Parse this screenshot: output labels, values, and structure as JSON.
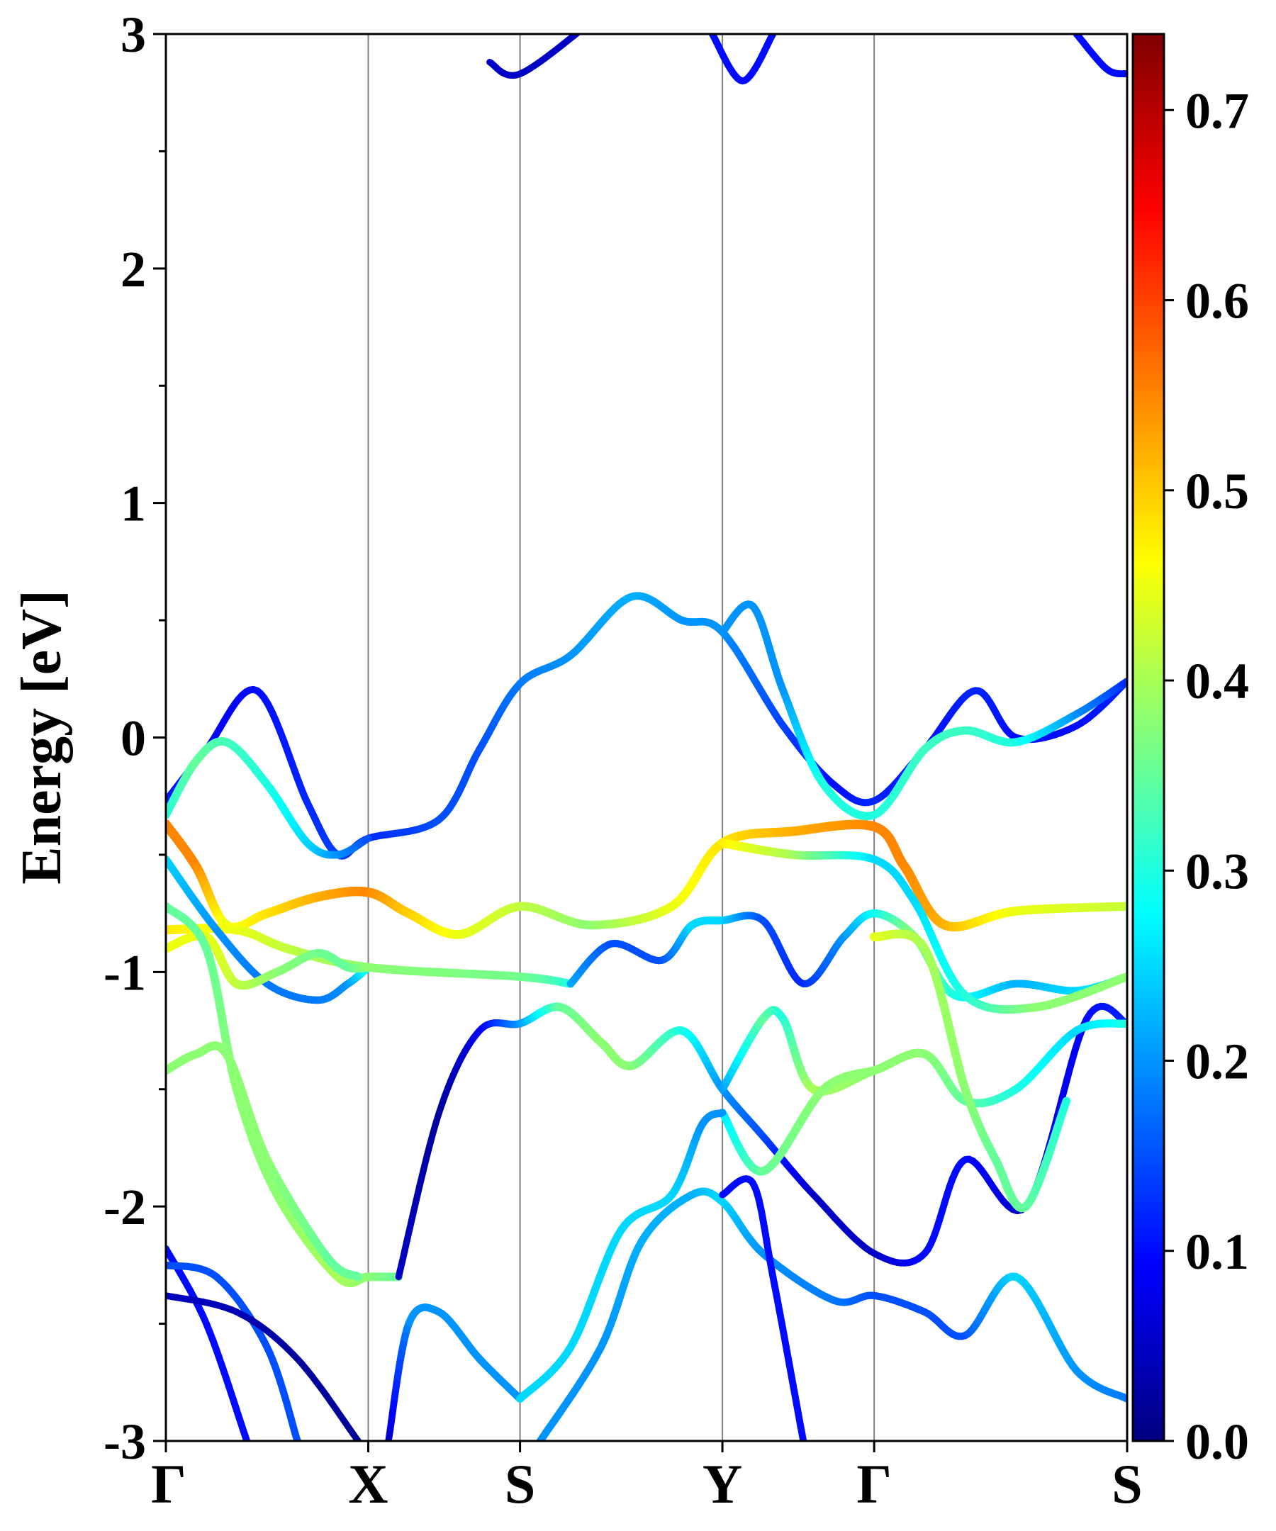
{
  "chart_data": {
    "type": "line",
    "title": "",
    "xlabel": "",
    "ylabel": "Energy [eV]",
    "ylim": [
      -3,
      3
    ],
    "y_ticks": [
      "-3",
      "-2",
      "-1",
      "0",
      "1",
      "2",
      "3"
    ],
    "x_ticks": [
      {
        "label": "Γ",
        "pos": 0.0
      },
      {
        "label": "X",
        "pos": 1.0
      },
      {
        "label": "S",
        "pos": 1.75
      },
      {
        "label": "Y",
        "pos": 2.75
      },
      {
        "label": "Γ",
        "pos": 3.5
      },
      {
        "label": "S",
        "pos": 4.75
      }
    ],
    "colorbar": {
      "colormap": "jet",
      "range": [
        0.0,
        0.74
      ],
      "ticks": [
        "0.0",
        "0.1",
        "0.2",
        "0.3",
        "0.4",
        "0.5",
        "0.6",
        "0.7"
      ]
    },
    "series": [
      {
        "name": "band-a",
        "points": [
          [
            0,
            -0.27,
            0.12
          ],
          [
            0.2,
            -0.05,
            0.08
          ],
          [
            0.45,
            0.2,
            0.1
          ],
          [
            0.7,
            -0.28,
            0.12
          ],
          [
            0.85,
            -0.5,
            0.14
          ],
          [
            1.0,
            -0.43,
            0.12
          ],
          [
            1.35,
            -0.35,
            0.15
          ],
          [
            1.55,
            -0.05,
            0.15
          ],
          [
            1.75,
            0.23,
            0.18
          ],
          [
            2.0,
            0.35,
            0.2
          ],
          [
            2.3,
            0.6,
            0.22
          ],
          [
            2.55,
            0.5,
            0.2
          ],
          [
            2.75,
            0.45,
            0.2
          ],
          [
            3.05,
            0.05,
            0.14
          ],
          [
            3.3,
            -0.2,
            0.1
          ],
          [
            3.5,
            -0.27,
            0.12
          ],
          [
            3.75,
            -0.05,
            0.1
          ],
          [
            4.0,
            0.2,
            0.12
          ],
          [
            4.2,
            0.0,
            0.1
          ],
          [
            4.5,
            0.05,
            0.1
          ],
          [
            4.75,
            0.24,
            0.12
          ]
        ]
      },
      {
        "name": "band-b",
        "points": [
          [
            0,
            -0.33,
            0.3
          ],
          [
            0.15,
            -0.1,
            0.35
          ],
          [
            0.3,
            -0.02,
            0.33
          ],
          [
            0.5,
            -0.2,
            0.3
          ],
          [
            0.7,
            -0.45,
            0.25
          ],
          [
            0.85,
            -0.5,
            0.2
          ],
          [
            1.0,
            -0.43,
            0.15
          ]
        ]
      },
      {
        "name": "band-c",
        "points": [
          [
            2.75,
            0.45,
            0.2
          ],
          [
            2.9,
            0.56,
            0.2
          ],
          [
            3.05,
            0.2,
            0.2
          ],
          [
            3.25,
            -0.2,
            0.3
          ],
          [
            3.5,
            -0.33,
            0.3
          ],
          [
            3.75,
            -0.05,
            0.32
          ],
          [
            3.95,
            0.03,
            0.32
          ],
          [
            4.2,
            -0.02,
            0.3
          ],
          [
            4.5,
            0.1,
            0.2
          ],
          [
            4.75,
            0.24,
            0.12
          ]
        ]
      },
      {
        "name": "band-d",
        "points": [
          [
            0,
            -0.37,
            0.55
          ],
          [
            0.15,
            -0.55,
            0.55
          ],
          [
            0.3,
            -0.8,
            0.45
          ],
          [
            0.5,
            -0.75,
            0.48
          ],
          [
            0.75,
            -0.68,
            0.52
          ],
          [
            1.0,
            -0.66,
            0.55
          ],
          [
            1.2,
            -0.75,
            0.5
          ],
          [
            1.45,
            -0.84,
            0.45
          ],
          [
            1.75,
            -0.72,
            0.42
          ],
          [
            2.1,
            -0.8,
            0.38
          ],
          [
            2.5,
            -0.72,
            0.45
          ],
          [
            2.75,
            -0.45,
            0.48
          ],
          [
            3.1,
            -0.4,
            0.52
          ],
          [
            3.5,
            -0.38,
            0.55
          ],
          [
            3.65,
            -0.55,
            0.55
          ],
          [
            3.85,
            -0.8,
            0.52
          ],
          [
            4.2,
            -0.74,
            0.45
          ],
          [
            4.75,
            -0.72,
            0.42
          ]
        ]
      },
      {
        "name": "band-e",
        "points": [
          [
            0,
            -0.82,
            0.48
          ],
          [
            0.35,
            -0.82,
            0.45
          ],
          [
            0.6,
            -0.9,
            0.42
          ],
          [
            1.0,
            -0.98,
            0.38
          ],
          [
            1.75,
            -1.02,
            0.36
          ],
          [
            2.0,
            -1.05,
            0.3
          ]
        ]
      },
      {
        "name": "band-f",
        "points": [
          [
            0,
            -0.52,
            0.25
          ],
          [
            0.25,
            -0.82,
            0.2
          ],
          [
            0.5,
            -1.05,
            0.18
          ],
          [
            0.75,
            -1.12,
            0.18
          ],
          [
            0.9,
            -1.05,
            0.2
          ],
          [
            1.0,
            -0.98,
            0.3
          ]
        ]
      },
      {
        "name": "band-g",
        "points": [
          [
            0,
            -0.9,
            0.45
          ],
          [
            0.2,
            -0.85,
            0.45
          ],
          [
            0.35,
            -1.05,
            0.42
          ],
          [
            0.55,
            -1.0,
            0.38
          ],
          [
            0.75,
            -0.92,
            0.36
          ],
          [
            0.9,
            -0.98,
            0.35
          ],
          [
            1.0,
            -0.98,
            0.38
          ]
        ]
      },
      {
        "name": "band-h",
        "points": [
          [
            2.0,
            -1.05,
            0.22
          ],
          [
            2.2,
            -0.88,
            0.15
          ],
          [
            2.45,
            -0.95,
            0.15
          ],
          [
            2.6,
            -0.8,
            0.25
          ],
          [
            2.75,
            -0.78,
            0.25
          ],
          [
            2.95,
            -0.78,
            0.15
          ],
          [
            3.15,
            -1.05,
            0.12
          ],
          [
            3.35,
            -0.85,
            0.2
          ],
          [
            3.5,
            -0.75,
            0.28
          ],
          [
            3.7,
            -0.85,
            0.38
          ],
          [
            3.9,
            -1.1,
            0.3
          ],
          [
            4.2,
            -1.05,
            0.22
          ],
          [
            4.5,
            -1.08,
            0.25
          ],
          [
            4.75,
            -1.02,
            0.28
          ]
        ]
      },
      {
        "name": "band-i",
        "points": [
          [
            2.75,
            -0.45,
            0.48
          ],
          [
            3.1,
            -0.5,
            0.4
          ],
          [
            3.5,
            -0.52,
            0.25
          ],
          [
            3.7,
            -0.7,
            0.25
          ],
          [
            3.95,
            -1.1,
            0.3
          ],
          [
            4.3,
            -1.15,
            0.38
          ],
          [
            4.75,
            -1.02,
            0.38
          ]
        ]
      },
      {
        "name": "band-j",
        "points": [
          [
            0,
            -0.72,
            0.35
          ],
          [
            0.2,
            -0.9,
            0.35
          ],
          [
            0.35,
            -1.5,
            0.38
          ],
          [
            0.55,
            -1.95,
            0.38
          ],
          [
            0.85,
            -2.3,
            0.4
          ],
          [
            1.0,
            -2.3,
            0.38
          ],
          [
            1.15,
            -2.3,
            0.35
          ]
        ]
      },
      {
        "name": "band-k",
        "points": [
          [
            0,
            -1.42,
            0.38
          ],
          [
            0.15,
            -1.35,
            0.38
          ],
          [
            0.3,
            -1.35,
            0.38
          ],
          [
            0.5,
            -1.8,
            0.38
          ],
          [
            0.8,
            -2.22,
            0.35
          ],
          [
            0.95,
            -2.3,
            0.35
          ]
        ]
      },
      {
        "name": "band-l",
        "points": [
          [
            1.15,
            -2.3,
            0.05
          ],
          [
            1.35,
            -1.6,
            0.02
          ],
          [
            1.55,
            -1.25,
            0.08
          ],
          [
            1.75,
            -1.22,
            0.2
          ],
          [
            1.95,
            -1.15,
            0.35
          ],
          [
            2.15,
            -1.3,
            0.38
          ],
          [
            2.3,
            -1.4,
            0.38
          ],
          [
            2.55,
            -1.25,
            0.3
          ],
          [
            2.75,
            -1.5,
            0.2
          ],
          [
            2.95,
            -1.7,
            0.15
          ],
          [
            3.2,
            -1.95,
            0.05
          ],
          [
            3.5,
            -2.2,
            0.05
          ],
          [
            3.75,
            -2.2,
            0.1
          ],
          [
            3.95,
            -1.8,
            0.1
          ],
          [
            4.25,
            -2.0,
            0.05
          ],
          [
            4.55,
            -1.2,
            0.1
          ],
          [
            4.75,
            -1.22,
            0.12
          ]
        ]
      },
      {
        "name": "band-m",
        "points": [
          [
            2.75,
            -1.5,
            0.2
          ],
          [
            2.95,
            -1.2,
            0.35
          ],
          [
            3.05,
            -1.2,
            0.3
          ],
          [
            3.2,
            -1.5,
            0.4
          ],
          [
            3.5,
            -1.42,
            0.38
          ],
          [
            3.75,
            -1.35,
            0.38
          ],
          [
            3.95,
            -1.55,
            0.35
          ],
          [
            4.2,
            -1.5,
            0.3
          ],
          [
            4.5,
            -1.25,
            0.25
          ],
          [
            4.75,
            -1.22,
            0.3
          ]
        ]
      },
      {
        "name": "band-n",
        "points": [
          [
            2.75,
            -1.6,
            0.25
          ],
          [
            2.95,
            -1.85,
            0.35
          ],
          [
            3.25,
            -1.5,
            0.38
          ],
          [
            3.5,
            -1.42,
            0.38
          ]
        ]
      },
      {
        "name": "band-o",
        "points": [
          [
            3.5,
            -0.85,
            0.45
          ],
          [
            3.75,
            -0.9,
            0.4
          ],
          [
            3.95,
            -1.5,
            0.38
          ],
          [
            4.1,
            -1.8,
            0.35
          ],
          [
            4.25,
            -2.0,
            0.35
          ],
          [
            4.45,
            -1.55,
            0.3
          ]
        ]
      },
      {
        "name": "band-p",
        "points": [
          [
            1.85,
            -3.0,
            0.2
          ],
          [
            2.15,
            -2.6,
            0.2
          ],
          [
            2.35,
            -2.15,
            0.22
          ],
          [
            2.6,
            -1.95,
            0.22
          ],
          [
            2.75,
            -1.98,
            0.25
          ],
          [
            2.95,
            -2.2,
            0.2
          ],
          [
            3.3,
            -2.4,
            0.18
          ],
          [
            3.5,
            -2.38,
            0.15
          ],
          [
            3.75,
            -2.45,
            0.15
          ],
          [
            3.95,
            -2.55,
            0.15
          ],
          [
            4.2,
            -2.3,
            0.25
          ],
          [
            4.5,
            -2.7,
            0.2
          ],
          [
            4.75,
            -2.82,
            0.18
          ]
        ]
      },
      {
        "name": "band-q",
        "points": [
          [
            1.75,
            -2.82,
            0.2
          ],
          [
            1.55,
            -2.65,
            0.2
          ],
          [
            1.35,
            -2.45,
            0.2
          ],
          [
            1.2,
            -2.5,
            0.2
          ],
          [
            1.1,
            -3.0,
            0.05
          ]
        ]
      },
      {
        "name": "band-r",
        "points": [
          [
            1.75,
            -2.82,
            0.25
          ],
          [
            2.0,
            -2.6,
            0.25
          ],
          [
            2.25,
            -2.1,
            0.25
          ],
          [
            2.5,
            -1.95,
            0.25
          ],
          [
            2.65,
            -1.65,
            0.2
          ],
          [
            2.75,
            -1.6,
            0.2
          ]
        ]
      },
      {
        "name": "band-s",
        "points": [
          [
            2.75,
            -1.95,
            0.1
          ],
          [
            2.9,
            -1.9,
            0.1
          ],
          [
            3.0,
            -2.3,
            0.1
          ],
          [
            3.15,
            -3.0,
            0.1
          ]
        ]
      },
      {
        "name": "band-t",
        "points": [
          [
            0,
            -2.18,
            0.1
          ],
          [
            0.2,
            -2.5,
            0.1
          ],
          [
            0.4,
            -3.0,
            0.1
          ]
        ]
      },
      {
        "name": "band-u",
        "points": [
          [
            0,
            -2.25,
            0.15
          ],
          [
            0.25,
            -2.3,
            0.15
          ],
          [
            0.5,
            -2.6,
            0.15
          ],
          [
            0.65,
            -3.0,
            0.15
          ]
        ]
      },
      {
        "name": "band-v",
        "points": [
          [
            0,
            -2.38,
            0.05
          ],
          [
            0.35,
            -2.45,
            0.04
          ],
          [
            0.65,
            -2.65,
            0.02
          ],
          [
            0.95,
            -3.0,
            0.02
          ]
        ]
      },
      {
        "name": "band-w",
        "points": [
          [
            1.6,
            2.88,
            0.05
          ],
          [
            1.75,
            2.83,
            0.05
          ],
          [
            2.1,
            3.05,
            0.05
          ]
        ]
      },
      {
        "name": "band-x",
        "points": [
          [
            2.7,
            3.0,
            0.1
          ],
          [
            2.85,
            2.8,
            0.1
          ],
          [
            3.0,
            3.0,
            0.1
          ]
        ]
      },
      {
        "name": "band-y",
        "points": [
          [
            4.5,
            3.0,
            0.1
          ],
          [
            4.65,
            2.85,
            0.1
          ],
          [
            4.75,
            2.83,
            0.1
          ]
        ]
      }
    ]
  }
}
